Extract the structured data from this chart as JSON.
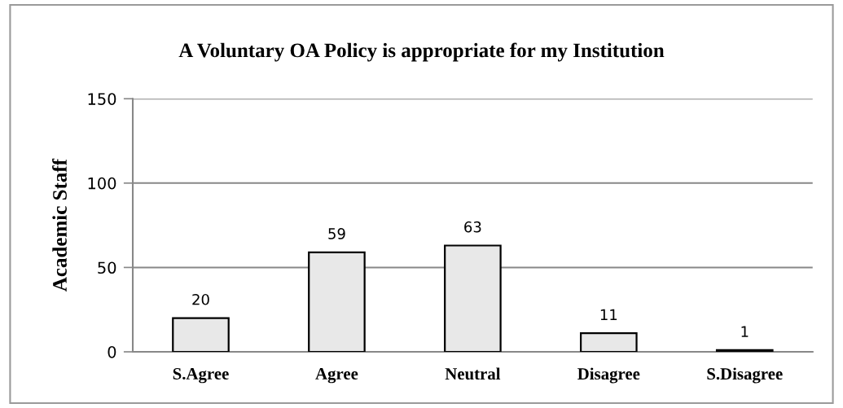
{
  "chart_data": {
    "type": "bar",
    "title": "A Voluntary OA Policy is appropriate for my Institution",
    "ylabel": "Academic Staff",
    "categories": [
      "S.Agree",
      "Agree",
      "Neutral",
      "Disagree",
      "S.Disagree"
    ],
    "values": [
      20,
      59,
      63,
      11,
      1
    ],
    "color": "#e8e8e8",
    "ylim": [
      0,
      150
    ],
    "yticks": [
      0,
      50,
      100,
      150
    ],
    "grid": "y",
    "data_labels": true,
    "legend": false
  }
}
